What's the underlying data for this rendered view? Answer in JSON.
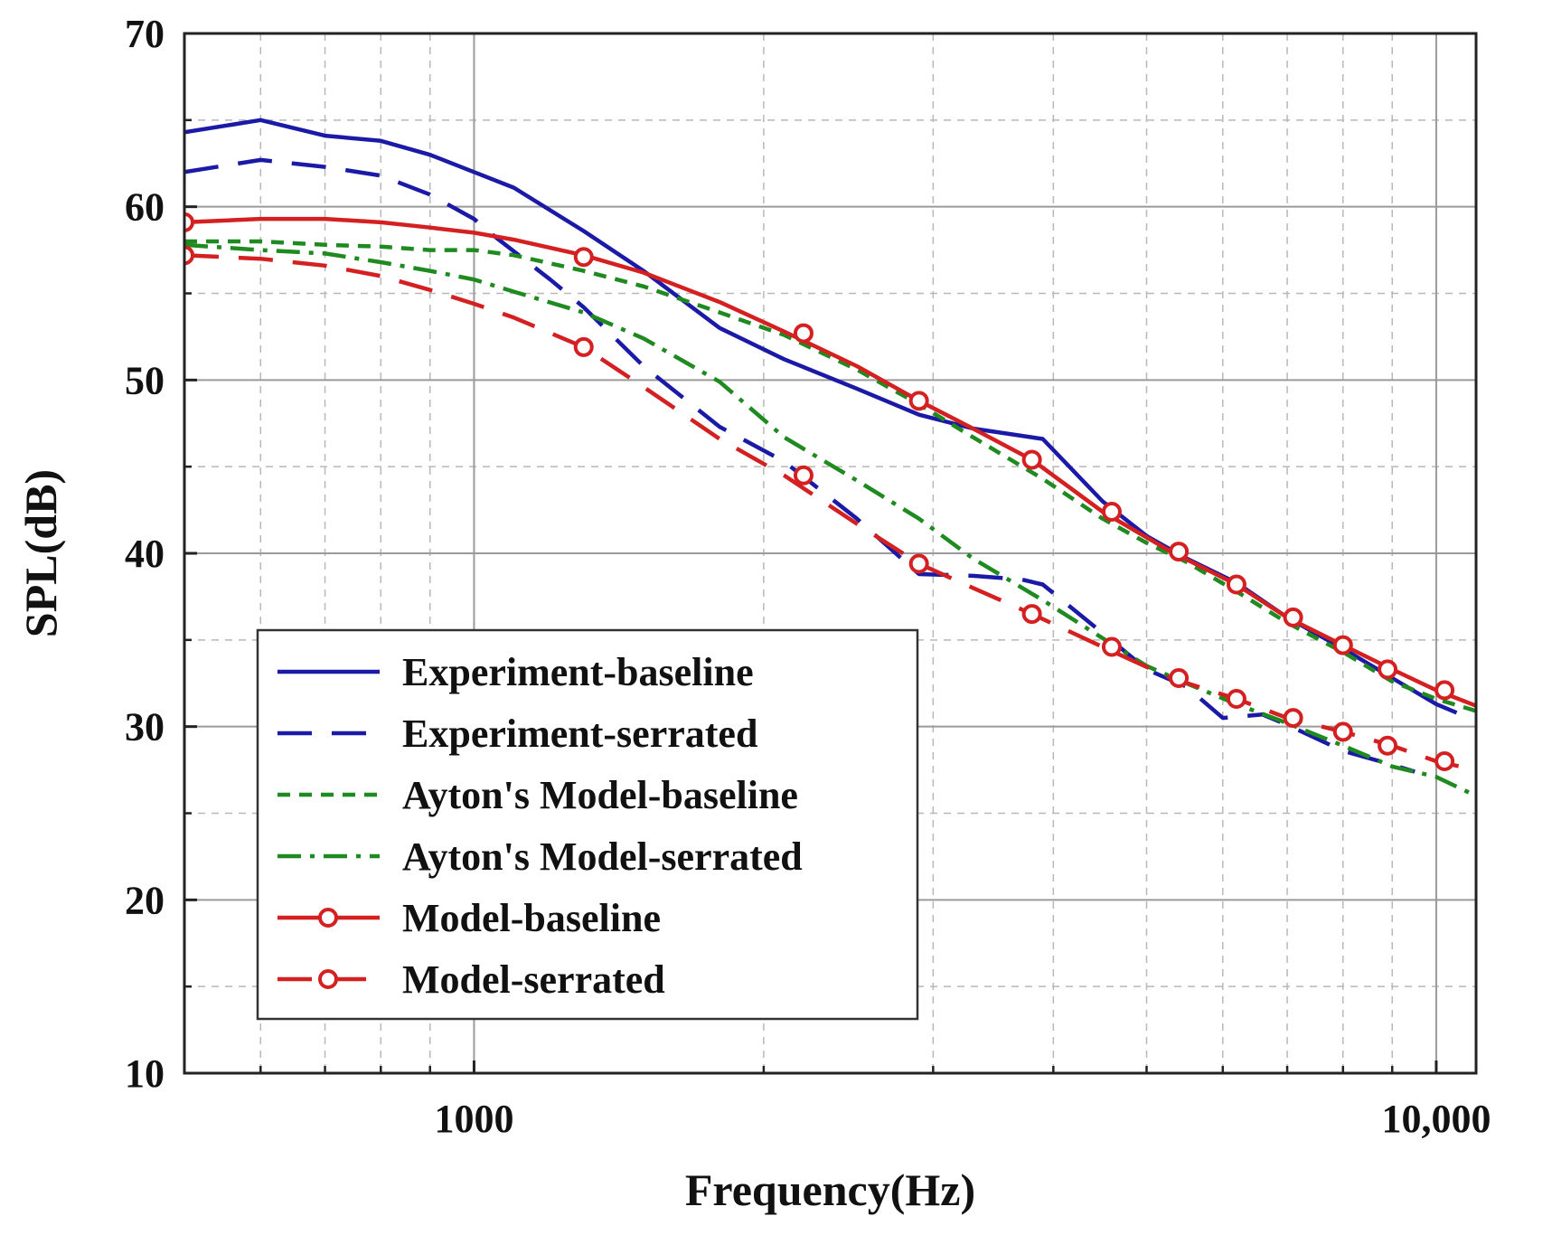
{
  "chart_data": {
    "type": "line",
    "title": "",
    "xlabel": "Frequency(Hz)",
    "ylabel": "SPL(dB)",
    "xscale": "log",
    "xlim": [
      500,
      11000
    ],
    "ylim": [
      10,
      70
    ],
    "x_ticks": [
      {
        "value": 1000,
        "label": "1000"
      },
      {
        "value": 10000,
        "label": "10,000"
      }
    ],
    "y_ticks": [
      {
        "value": 10,
        "label": "10"
      },
      {
        "value": 20,
        "label": "20"
      },
      {
        "value": 30,
        "label": "30"
      },
      {
        "value": 40,
        "label": "40"
      },
      {
        "value": 50,
        "label": "50"
      },
      {
        "value": 60,
        "label": "60"
      },
      {
        "value": 70,
        "label": "70"
      }
    ],
    "grid": true,
    "legend_position": "bottom-left",
    "series": [
      {
        "name": "Experiment-baseline",
        "color": "#1a1aa6",
        "dash": "solid",
        "marker": "none",
        "points": [
          [
            500,
            64.3
          ],
          [
            600,
            65
          ],
          [
            700,
            64.1
          ],
          [
            800,
            63.8
          ],
          [
            900,
            63
          ],
          [
            1000,
            62
          ],
          [
            1100,
            61.1
          ],
          [
            1300,
            58.6
          ],
          [
            1500,
            56.3
          ],
          [
            1800,
            53
          ],
          [
            2100,
            51.2
          ],
          [
            2500,
            49.5
          ],
          [
            2900,
            48
          ],
          [
            3300,
            47.2
          ],
          [
            3900,
            46.6
          ],
          [
            4500,
            43
          ],
          [
            5000,
            41
          ],
          [
            5500,
            39.7
          ],
          [
            6200,
            38.3
          ],
          [
            7000,
            36.3
          ],
          [
            8000,
            34.5
          ],
          [
            9000,
            32.8
          ],
          [
            10000,
            31.3
          ],
          [
            10500,
            30.8
          ]
        ]
      },
      {
        "name": "Experiment-serrated",
        "color": "#1a1aa6",
        "dash": "long-dash",
        "marker": "none",
        "points": [
          [
            500,
            62
          ],
          [
            600,
            62.7
          ],
          [
            700,
            62.3
          ],
          [
            800,
            61.8
          ],
          [
            900,
            60.7
          ],
          [
            1000,
            59.3
          ],
          [
            1050,
            58.3
          ],
          [
            1200,
            55.8
          ],
          [
            1300,
            54.2
          ],
          [
            1500,
            50.8
          ],
          [
            1800,
            47.3
          ],
          [
            2100,
            45.3
          ],
          [
            2500,
            42
          ],
          [
            2900,
            38.8
          ],
          [
            3300,
            38.7
          ],
          [
            3700,
            38.5
          ],
          [
            3900,
            38.2
          ],
          [
            4500,
            35.4
          ],
          [
            5000,
            33.3
          ],
          [
            5500,
            32.3
          ],
          [
            6000,
            30.5
          ],
          [
            6600,
            30.7
          ],
          [
            7000,
            30.1
          ],
          [
            8000,
            28.6
          ],
          [
            9000,
            27.8
          ],
          [
            9500,
            27.4
          ]
        ]
      },
      {
        "name": "Ayton's Model-baseline",
        "color": "#1f8a1f",
        "dash": "short-dash",
        "marker": "none",
        "points": [
          [
            500,
            58
          ],
          [
            600,
            58
          ],
          [
            700,
            57.8
          ],
          [
            800,
            57.7
          ],
          [
            900,
            57.5
          ],
          [
            1000,
            57.5
          ],
          [
            1100,
            57.2
          ],
          [
            1300,
            56.3
          ],
          [
            1500,
            55.4
          ],
          [
            1800,
            53.9
          ],
          [
            2100,
            52.6
          ],
          [
            2500,
            50.6
          ],
          [
            2900,
            48.6
          ],
          [
            3300,
            46.7
          ],
          [
            3900,
            44.3
          ],
          [
            4500,
            42
          ],
          [
            5000,
            40.6
          ],
          [
            5500,
            39.5
          ],
          [
            6200,
            37.8
          ],
          [
            7000,
            36
          ],
          [
            8000,
            34.3
          ],
          [
            9000,
            32.6
          ],
          [
            10000,
            31.6
          ],
          [
            11000,
            30.9
          ]
        ]
      },
      {
        "name": "Ayton's Model-serrated",
        "color": "#1f8a1f",
        "dash": "dash-dot",
        "marker": "none",
        "points": [
          [
            500,
            57.8
          ],
          [
            600,
            57.5
          ],
          [
            700,
            57.3
          ],
          [
            800,
            56.8
          ],
          [
            900,
            56.3
          ],
          [
            1000,
            55.8
          ],
          [
            1100,
            55.1
          ],
          [
            1300,
            53.9
          ],
          [
            1500,
            52.4
          ],
          [
            1800,
            49.9
          ],
          [
            2100,
            46.7
          ],
          [
            2500,
            44.2
          ],
          [
            2900,
            42
          ],
          [
            3300,
            39.7
          ],
          [
            3900,
            37.3
          ],
          [
            4500,
            35.1
          ],
          [
            5000,
            33.5
          ],
          [
            5500,
            32.5
          ],
          [
            6200,
            31.3
          ],
          [
            7000,
            30.2
          ],
          [
            8000,
            28.9
          ],
          [
            9000,
            27.7
          ],
          [
            10000,
            27.1
          ],
          [
            11000,
            26
          ]
        ]
      },
      {
        "name": "Model-baseline",
        "color": "#d42020",
        "dash": "solid",
        "marker": "circle",
        "points": [
          [
            500,
            59.1
          ],
          [
            600,
            59.3
          ],
          [
            700,
            59.3
          ],
          [
            800,
            59.1
          ],
          [
            900,
            58.8
          ],
          [
            1000,
            58.5
          ],
          [
            1100,
            58.1
          ],
          [
            1300,
            57.2
          ],
          [
            1500,
            56.2
          ],
          [
            1800,
            54.5
          ],
          [
            2100,
            52.8
          ],
          [
            2500,
            50.8
          ],
          [
            2900,
            48.8
          ],
          [
            3300,
            47.2
          ],
          [
            3800,
            45.4
          ],
          [
            4500,
            42.4
          ],
          [
            5300,
            40.1
          ],
          [
            6200,
            38.2
          ],
          [
            7000,
            36.3
          ],
          [
            8000,
            34.7
          ],
          [
            9000,
            33.3
          ],
          [
            10000,
            32.1
          ],
          [
            11000,
            31.2
          ]
        ]
      },
      {
        "name": "Model-serrated",
        "color": "#d42020",
        "dash": "long-dash",
        "marker": "circle",
        "points": [
          [
            500,
            57.2
          ],
          [
            600,
            57
          ],
          [
            700,
            56.6
          ],
          [
            800,
            56
          ],
          [
            900,
            55.2
          ],
          [
            1000,
            54.4
          ],
          [
            1100,
            53.6
          ],
          [
            1300,
            51.9
          ],
          [
            1500,
            49.6
          ],
          [
            1800,
            46.6
          ],
          [
            2100,
            44.5
          ],
          [
            2500,
            41.7
          ],
          [
            2900,
            39.4
          ],
          [
            3300,
            38
          ],
          [
            3800,
            36.5
          ],
          [
            4500,
            34.6
          ],
          [
            5300,
            32.8
          ],
          [
            6200,
            31.6
          ],
          [
            7000,
            30.5
          ],
          [
            8000,
            29.7
          ],
          [
            9000,
            28.9
          ],
          [
            10000,
            28
          ],
          [
            11000,
            27.5
          ]
        ]
      }
    ],
    "marker_points": {
      "Model-baseline": [
        [
          500,
          59.1
        ],
        [
          1300,
          57.1
        ],
        [
          2200,
          52.7
        ],
        [
          2900,
          48.8
        ],
        [
          3800,
          45.4
        ],
        [
          4600,
          42.4
        ],
        [
          5400,
          40.1
        ],
        [
          6200,
          38.2
        ],
        [
          7100,
          36.3
        ],
        [
          8000,
          34.7
        ],
        [
          8900,
          33.3
        ],
        [
          10200,
          32.1
        ]
      ],
      "Model-serrated": [
        [
          500,
          57.2
        ],
        [
          1300,
          51.9
        ],
        [
          2200,
          44.5
        ],
        [
          2900,
          39.4
        ],
        [
          3800,
          36.5
        ],
        [
          4600,
          34.6
        ],
        [
          5400,
          32.8
        ],
        [
          6200,
          31.6
        ],
        [
          7100,
          30.5
        ],
        [
          8000,
          29.7
        ],
        [
          8900,
          28.9
        ],
        [
          10200,
          28
        ]
      ]
    }
  }
}
